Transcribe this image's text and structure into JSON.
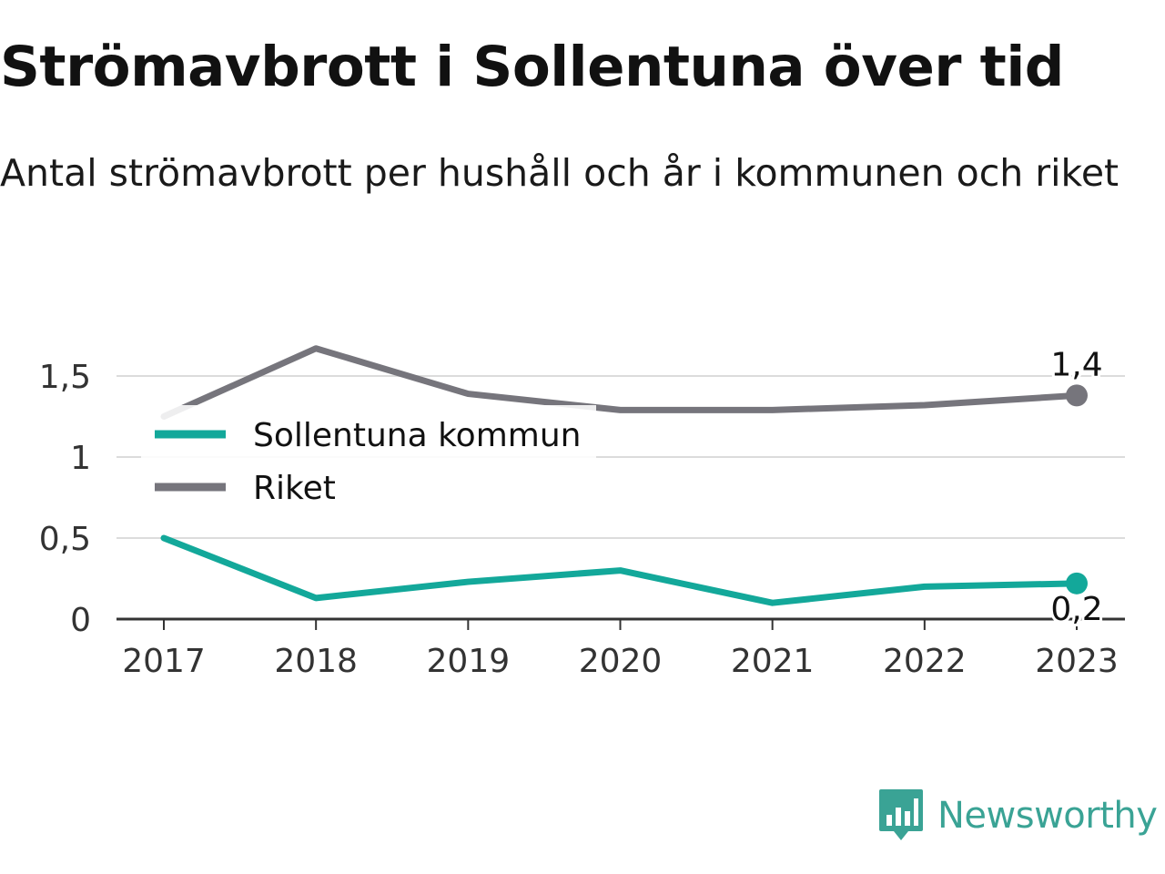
{
  "header": {
    "title": "Strömavbrott i Sollentuna över tid",
    "subtitle": "Antal strömavbrott per hushåll och år i kommunen och riket"
  },
  "brand": {
    "name": "Newsworthy",
    "color": "#3aa395",
    "icon": "newsworthy-logo-icon"
  },
  "chart_data": {
    "type": "line",
    "title": "Strömavbrott i Sollentuna över tid",
    "subtitle": "Antal strömavbrott per hushåll och år i kommunen och riket",
    "xlabel": "",
    "ylabel": "",
    "categories": [
      "2017",
      "2018",
      "2019",
      "2020",
      "2021",
      "2022",
      "2023"
    ],
    "ylim": [
      0,
      1.75
    ],
    "yticks": [
      0,
      0.5,
      1,
      1.5
    ],
    "ytick_labels": [
      "0",
      "0,5",
      "1",
      "1,5"
    ],
    "grid": true,
    "legend": "top-left",
    "series": [
      {
        "name": "Sollentuna kommun",
        "color": "#13a89a",
        "values": [
          0.5,
          0.13,
          0.23,
          0.3,
          0.1,
          0.2,
          0.22
        ],
        "end_label": "0,2"
      },
      {
        "name": "Riket",
        "color": "#76757c",
        "values": [
          1.25,
          1.67,
          1.39,
          1.29,
          1.29,
          1.32,
          1.38
        ],
        "end_label": "1,4"
      }
    ]
  }
}
